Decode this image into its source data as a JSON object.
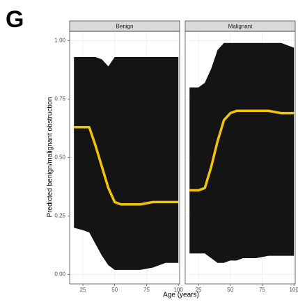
{
  "panel_label": "G",
  "chart_data": {
    "type": "line",
    "y_label": "Predicted benign/malignant obstruction",
    "x_label": "Age (years)",
    "ylim": [
      -0.04,
      1.04
    ],
    "yticks": [
      {
        "value": 0,
        "label": "0.00"
      },
      {
        "value": 0.25,
        "label": "0.25"
      },
      {
        "value": 0.5,
        "label": "0.50"
      },
      {
        "value": 0.75,
        "label": "0.75"
      },
      {
        "value": 1,
        "label": "1.00"
      }
    ],
    "xlim": [
      14.6,
      101
    ],
    "xticks": [
      25,
      50,
      75,
      100
    ],
    "grid": true,
    "panels": [
      {
        "title": "Benign",
        "color": "#f5c400",
        "band_color": "#000000",
        "x": [
          18,
          25,
          30,
          35,
          40,
          45,
          50,
          55,
          60,
          70,
          80,
          90,
          100
        ],
        "values": [
          0.63,
          0.63,
          0.63,
          0.55,
          0.46,
          0.37,
          0.31,
          0.3,
          0.3,
          0.3,
          0.31,
          0.31,
          0.31
        ],
        "upper": [
          0.93,
          0.93,
          0.93,
          0.93,
          0.92,
          0.89,
          0.93,
          0.93,
          0.93,
          0.93,
          0.93,
          0.93,
          0.93
        ],
        "lower": [
          0.2,
          0.19,
          0.18,
          0.13,
          0.08,
          0.04,
          0.02,
          0.02,
          0.02,
          0.02,
          0.03,
          0.05,
          0.05
        ]
      },
      {
        "title": "Malignant",
        "color": "#f5c400",
        "band_color": "#000000",
        "x": [
          18,
          25,
          30,
          35,
          40,
          45,
          50,
          55,
          60,
          70,
          80,
          90,
          100
        ],
        "values": [
          0.36,
          0.36,
          0.37,
          0.46,
          0.57,
          0.66,
          0.69,
          0.7,
          0.7,
          0.7,
          0.7,
          0.69,
          0.69
        ],
        "upper": [
          0.8,
          0.8,
          0.82,
          0.88,
          0.96,
          0.99,
          0.99,
          0.99,
          0.99,
          0.99,
          0.99,
          0.99,
          0.97
        ],
        "lower": [
          0.09,
          0.09,
          0.09,
          0.07,
          0.05,
          0.05,
          0.06,
          0.06,
          0.07,
          0.07,
          0.08,
          0.08,
          0.08
        ]
      }
    ]
  }
}
